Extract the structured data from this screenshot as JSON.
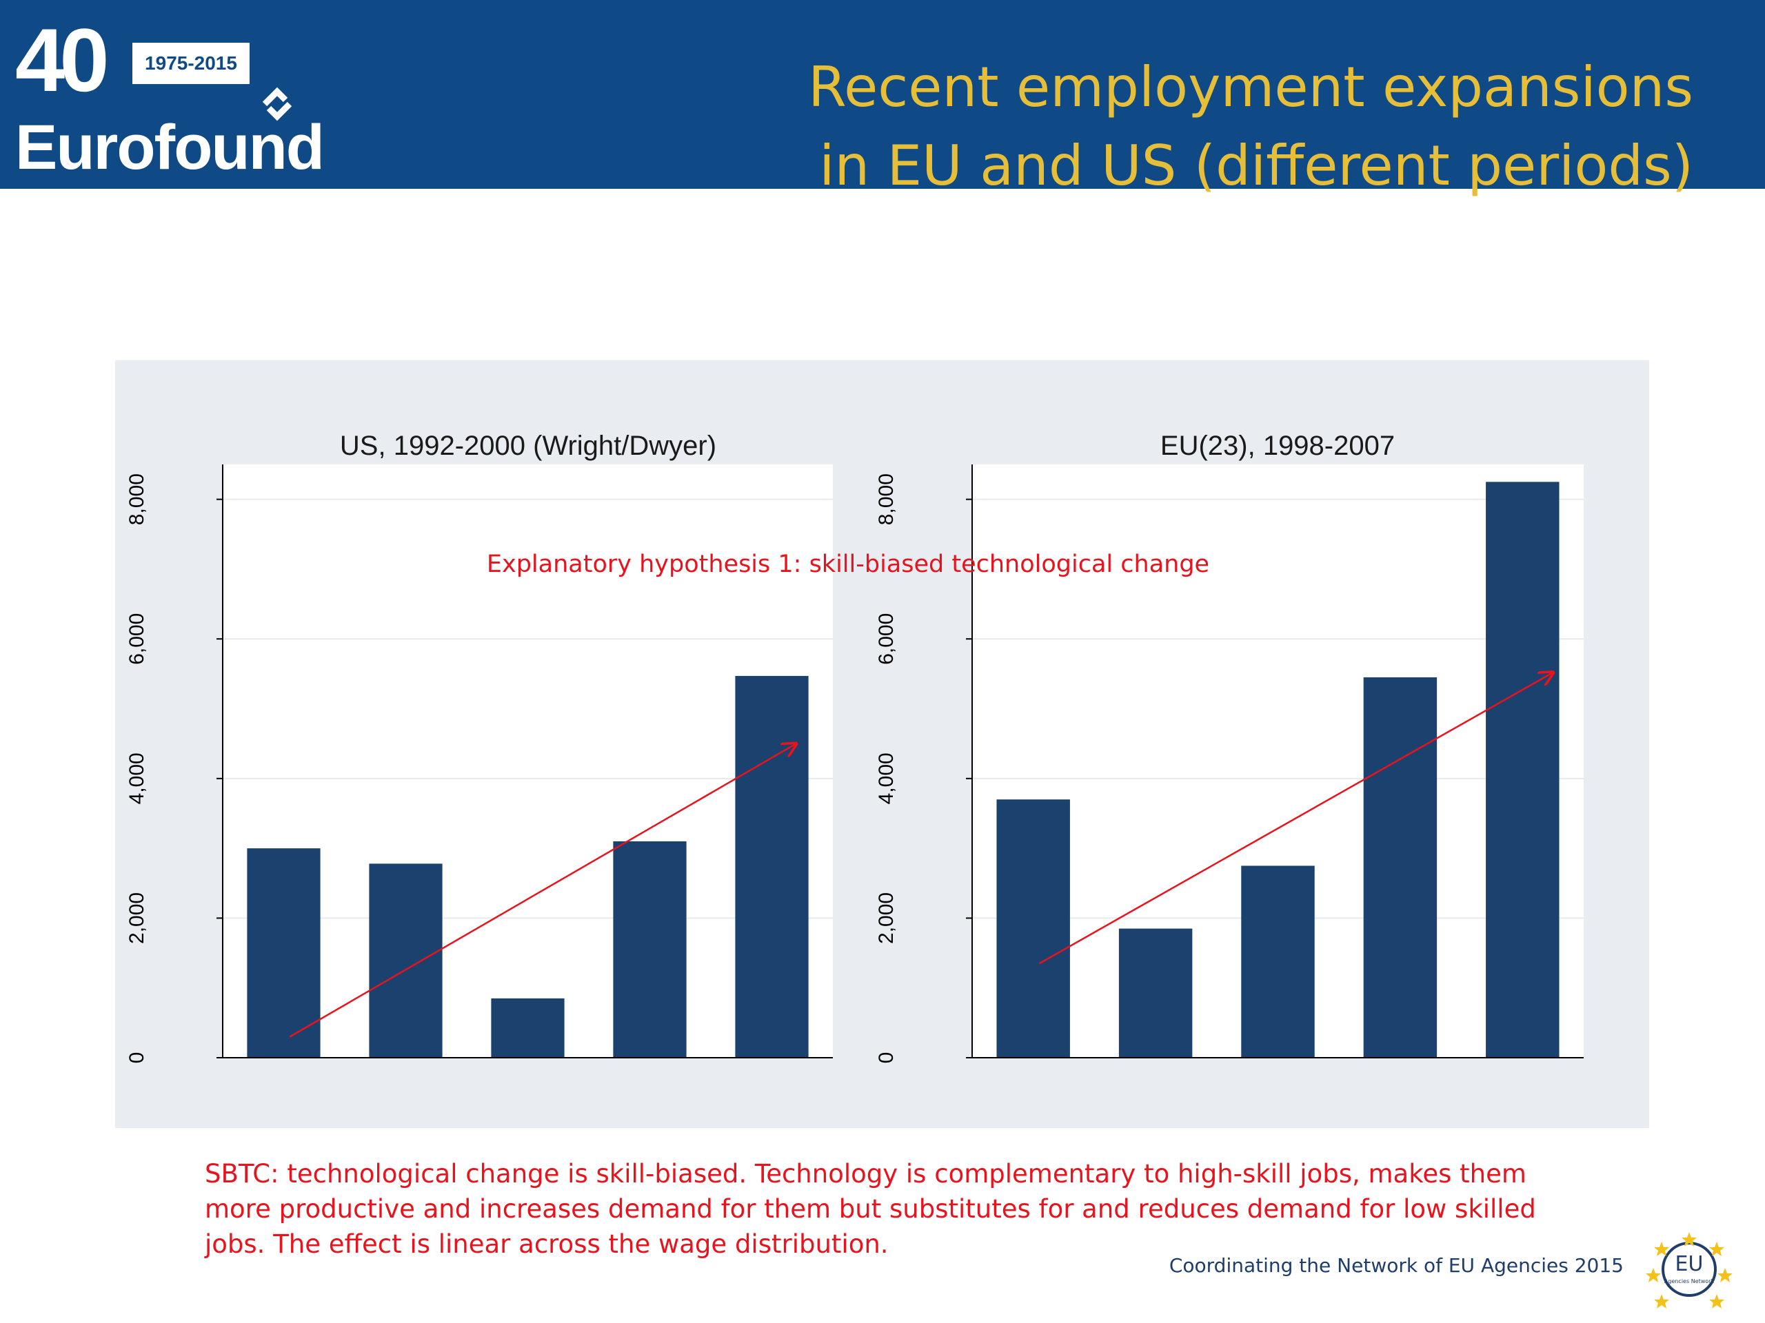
{
  "header": {
    "logo_number": "40",
    "logo_years": "1975-2015",
    "logo_name": "Eurofound",
    "title_line1": "Recent employment expansions",
    "title_line2": "in EU and US (different periods)"
  },
  "colors": {
    "header_bg": "#0f4a87",
    "title": "#e6be37",
    "bar": "#1b426e",
    "annotation": "#e8131c",
    "panel_bg": "#e9edf1"
  },
  "annotation": "Explanatory hypothesis 1: skill-biased technological change",
  "chart_data": [
    {
      "type": "bar",
      "title": "US, 1992-2000 (Wright/Dwyer)",
      "categories": [
        "",
        "",
        "",
        "",
        ""
      ],
      "values": [
        3000,
        2780,
        850,
        3100,
        5470
      ],
      "ylim": [
        0,
        8500
      ],
      "yticks": [
        0,
        2000,
        4000,
        6000,
        8000
      ],
      "ytick_labels": [
        "0",
        "2,000",
        "4,000",
        "6,000",
        "8,000"
      ],
      "trend_arrow": {
        "from": [
          0.55,
          300
        ],
        "to": [
          4.7,
          4500
        ]
      },
      "grid": true
    },
    {
      "type": "bar",
      "title": "EU(23), 1998-2007",
      "categories": [
        "",
        "",
        "",
        "",
        ""
      ],
      "values": [
        3700,
        1850,
        2750,
        5450,
        8250
      ],
      "ylim": [
        0,
        8500
      ],
      "yticks": [
        0,
        2000,
        4000,
        6000,
        8000
      ],
      "ytick_labels": [
        "0",
        "2,000",
        "4,000",
        "6,000",
        "8,000"
      ],
      "trend_arrow": {
        "from": [
          0.55,
          1350
        ],
        "to": [
          4.75,
          5520
        ]
      },
      "grid": true
    }
  ],
  "caption": "SBTC:  technological change is skill-biased. Technology is complementary to high-skill jobs, makes them more productive and increases demand for them but substitutes for and reduces demand for low skilled jobs. The effect is linear across the wage distribution.",
  "footer": {
    "text": "Coordinating the Network of EU Agencies 2015",
    "badge_text": "EU",
    "badge_subtext": "Agencies Network"
  }
}
